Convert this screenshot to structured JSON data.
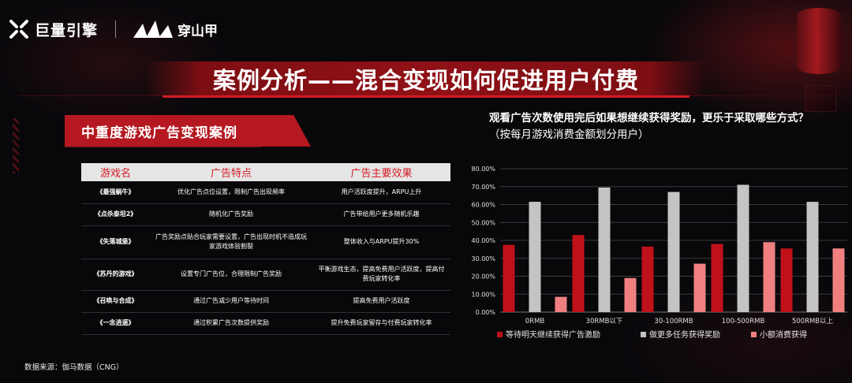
{
  "header": {
    "brand1": "巨量引擎",
    "brand2": "穿山甲",
    "title": "案例分析——混合变现如何促进用户付费"
  },
  "left_section": {
    "heading": "中重度游戏广告变现案例",
    "table": {
      "columns": [
        "游戏名",
        "广告特点",
        "广告主要效果"
      ],
      "rows": [
        {
          "game": "《最强蜗牛》",
          "feature": "优化广告点位设置，限制广告出现频率",
          "effect": "用户活跃度提升，ARPU上升"
        },
        {
          "game": "《点杀泰坦2》",
          "feature": "随机化广告奖励",
          "effect": "广告带给用户更多随机乐趣"
        },
        {
          "game": "《失落城堡》",
          "feature": "广告奖励点贴合玩家需要设置，广告出现时机不造成玩家游戏体验割裂",
          "effect": "整体收入与ARPU提升30%"
        },
        {
          "game": "《苏丹的游戏》",
          "feature": "设置专门广告位，合理限制广告奖励",
          "effect": "平衡游戏生态，提高免费用户活跃度，提高付费玩家转化率"
        },
        {
          "game": "《召唤与合成》",
          "feature": "通过广告减少用户等待时间",
          "effect": "提高免费用户活跃度"
        },
        {
          "game": "《一念逍遥》",
          "feature": "通过积累广告次数提供奖励",
          "effect": "提升免费玩家留存与付费玩家转化率"
        }
      ]
    }
  },
  "source": "数据来源：伽马数据（CNG）",
  "colors": {
    "accent": "#d41c24",
    "series1": "#c0111b",
    "series2": "#c4c4c4",
    "series3": "#f08080"
  },
  "chart_data": {
    "type": "bar",
    "title": "观看广告次数使用完后如果想继续获得奖励，更乐于采取哪些方式？",
    "subtitle": "（按每月游戏消费金额划分用户）",
    "categories": [
      "0RMB",
      "30RMB以下",
      "30-100RMB",
      "100-500RMB",
      "500RMB以上"
    ],
    "series": [
      {
        "name": "等待明天继续获得广告激励",
        "values": [
          37.5,
          43.0,
          36.5,
          38.0,
          35.5
        ]
      },
      {
        "name": "做更多任务获得奖励",
        "values": [
          61.5,
          69.5,
          67.0,
          71.0,
          61.5
        ]
      },
      {
        "name": "小额消费获得",
        "values": [
          8.5,
          19.0,
          27.0,
          39.0,
          35.5
        ]
      }
    ],
    "yticks": [
      "0.00%",
      "10.00%",
      "20.00%",
      "30.00%",
      "40.00%",
      "50.00%",
      "60.00%",
      "70.00%",
      "80.00%"
    ],
    "ylim": [
      0,
      80
    ],
    "grid": true,
    "legend": "bottom"
  }
}
